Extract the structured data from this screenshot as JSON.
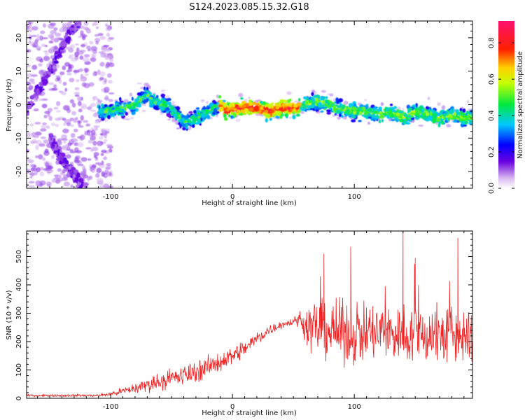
{
  "title": "S124.2023.085.15.32.G18",
  "colors": {
    "snr_line": "#ee2222",
    "frame": "#000000"
  },
  "chart_data": [
    {
      "type": "heatmap",
      "xlabel": "Height of straight line (km)",
      "ylabel": "Frequency (Hz)",
      "xlim": [
        -169,
        197
      ],
      "ylim": [
        -25,
        25
      ],
      "xticks": [
        -100,
        0,
        100
      ],
      "xtick_labels": [
        "-100",
        "0",
        "100"
      ],
      "yticks": [
        -20,
        -10,
        0,
        10,
        20
      ],
      "ytick_labels": [
        "-20",
        "-10",
        "0",
        "10",
        "20"
      ],
      "colorbar": {
        "label": "Normalized spectral amplitude",
        "range": [
          0,
          0.92
        ],
        "ticks": [
          0.0,
          0.2,
          0.4,
          0.6,
          0.8
        ],
        "tick_labels": [
          "0.0",
          "0.2",
          "0.4",
          "0.6",
          "0.8"
        ],
        "colormap": "rainbow (white-violet-blue-cyan-green-yellow-red-magenta)"
      },
      "ridge": {
        "x": [
          -110,
          -100,
          -90,
          -80,
          -75,
          -70,
          -65,
          -55,
          -45,
          -40,
          -35,
          -25,
          -15,
          -10,
          -5,
          0,
          10,
          20,
          30,
          40,
          50,
          60,
          70,
          80,
          85,
          90,
          100,
          110,
          120,
          130,
          140,
          150,
          160,
          170,
          180,
          190,
          197
        ],
        "y": [
          -2,
          -2,
          -1,
          0,
          2,
          3,
          1,
          0,
          -3,
          -5,
          -5,
          -3,
          -1,
          0,
          -2,
          -1,
          -1,
          -1,
          -2,
          -1,
          -1,
          0,
          1,
          0,
          -1,
          -1,
          -2,
          -2,
          -3,
          -2,
          -4,
          -2,
          -3,
          -4,
          -3,
          -4,
          -4
        ]
      },
      "aliased_branches": [
        {
          "x": [
            -169,
            -160,
            -150,
            -140,
            -130,
            -125
          ],
          "y": [
            -2,
            4,
            10,
            17,
            23,
            25
          ]
        },
        {
          "x": [
            -150,
            -145,
            -140,
            -135,
            -130,
            -125,
            -120
          ],
          "y": [
            -10,
            -13,
            -16,
            -19,
            -21,
            -23,
            -25
          ]
        }
      ]
    },
    {
      "type": "line",
      "xlabel": "Height of straight line (km)",
      "ylabel": "SNR (10 * v/v)",
      "xlim": [
        -169,
        197
      ],
      "ylim": [
        0,
        590
      ],
      "xticks": [
        -100,
        0,
        100
      ],
      "xtick_labels": [
        "-100",
        "0",
        "100"
      ],
      "yticks": [
        0,
        100,
        200,
        300,
        400,
        500
      ],
      "ytick_labels": [
        "0",
        "100",
        "200",
        "300",
        "400",
        "500"
      ],
      "envelope": {
        "x": [
          -169,
          -110,
          -100,
          -90,
          -80,
          -60,
          -40,
          -20,
          0,
          10,
          20,
          30,
          40,
          50,
          55,
          60,
          70,
          80,
          90,
          100,
          120,
          140,
          160,
          180,
          190,
          197
        ],
        "mean": [
          10,
          10,
          15,
          25,
          35,
          60,
          80,
          110,
          150,
          175,
          210,
          240,
          260,
          270,
          280,
          260,
          250,
          240,
          230,
          230,
          230,
          230,
          225,
          225,
          220,
          200
        ],
        "spread": [
          6,
          6,
          12,
          20,
          30,
          45,
          55,
          55,
          50,
          45,
          40,
          30,
          20,
          20,
          40,
          120,
          140,
          150,
          160,
          160,
          160,
          160,
          160,
          160,
          160,
          150
        ]
      },
      "peaks": [
        {
          "x": 140,
          "y": 590
        },
        {
          "x": 185,
          "y": 565
        },
        {
          "x": 97,
          "y": 535
        },
        {
          "x": 75,
          "y": 510
        },
        {
          "x": 150,
          "y": 495
        }
      ]
    }
  ]
}
